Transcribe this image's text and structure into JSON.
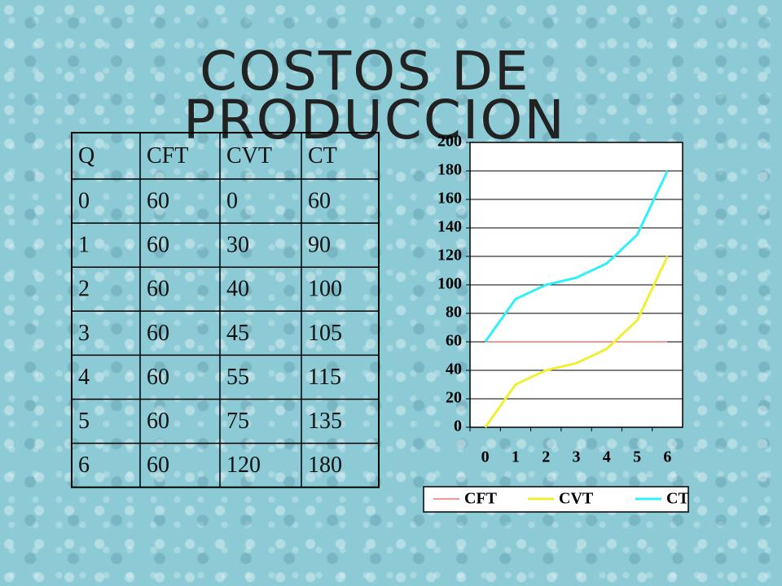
{
  "title": [
    "COSTOS DE",
    "PRODUCCION"
  ],
  "table": {
    "header": [
      "Q",
      "CFT",
      "CVT",
      "CT"
    ],
    "rows": [
      [
        0,
        60,
        0,
        60
      ],
      [
        1,
        60,
        30,
        90
      ],
      [
        2,
        60,
        40,
        100
      ],
      [
        3,
        60,
        45,
        105
      ],
      [
        4,
        60,
        55,
        115
      ],
      [
        5,
        60,
        75,
        135
      ],
      [
        6,
        60,
        120,
        180
      ]
    ]
  },
  "chart_data": {
    "type": "line",
    "categories": [
      "0",
      "1",
      "2",
      "3",
      "4",
      "5",
      "6"
    ],
    "series": [
      {
        "name": "CFT",
        "color": "#e03030",
        "values": [
          60,
          60,
          60,
          60,
          60,
          60,
          60
        ]
      },
      {
        "name": "CVT",
        "color": "#f0f030",
        "values": [
          0,
          30,
          40,
          45,
          55,
          75,
          120
        ]
      },
      {
        "name": "CT",
        "color": "#30f0f8",
        "values": [
          60,
          90,
          100,
          105,
          115,
          135,
          180
        ]
      }
    ],
    "ylim": [
      0,
      200
    ],
    "yticks": [
      0,
      20,
      40,
      60,
      80,
      100,
      120,
      140,
      160,
      180,
      200
    ],
    "grid": true,
    "legend": "bottom"
  }
}
